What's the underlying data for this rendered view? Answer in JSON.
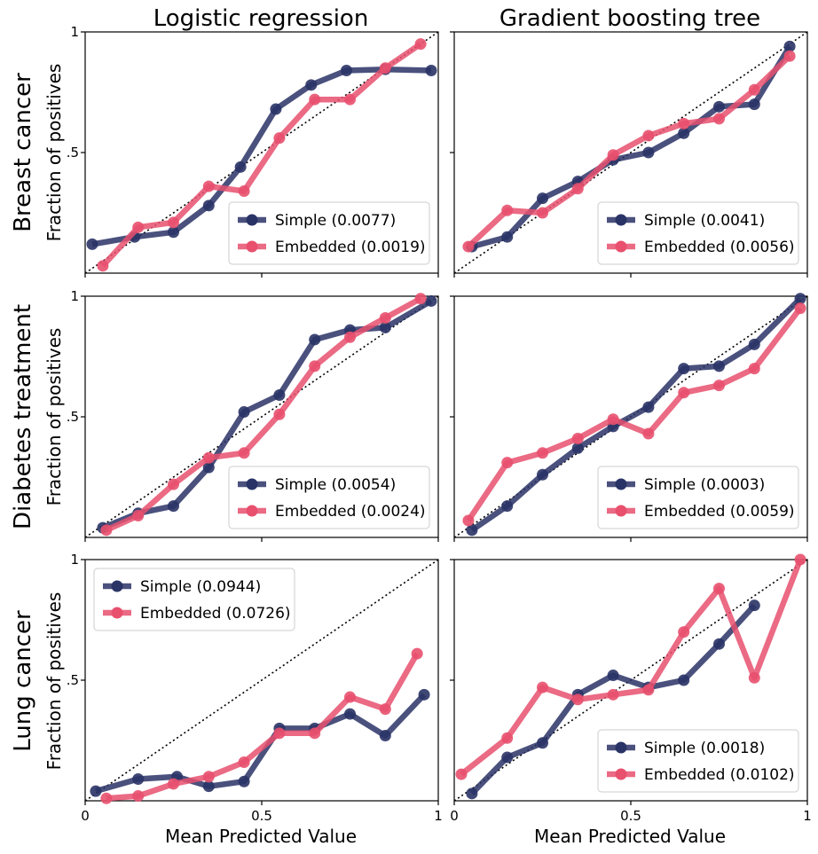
{
  "figure": {
    "column_titles": [
      "Logistic regression",
      "Gradient boosting tree"
    ],
    "row_titles": [
      "Breast cancer",
      "Diabetes treatment",
      "Lung cancer"
    ],
    "ylabel": "Fraction of positives",
    "xlabel": "Mean Predicted Value"
  },
  "colors": {
    "simple": "#2a3366",
    "embedded": "#e8506e",
    "diagonal": "#000000"
  },
  "chart_data": [
    {
      "type": "line",
      "panel": "breast-cancer-logistic-regression",
      "xlim": [
        0,
        1
      ],
      "ylim": [
        0,
        1
      ],
      "grid": false,
      "legend_position": "bottom-right",
      "diagonal": true,
      "series": [
        {
          "name": "Simple (0.0077)",
          "x": [
            0.02,
            0.14,
            0.25,
            0.35,
            0.44,
            0.54,
            0.64,
            0.74,
            0.85,
            0.98
          ],
          "y": [
            0.12,
            0.15,
            0.17,
            0.28,
            0.44,
            0.68,
            0.78,
            0.84,
            0.845,
            0.84
          ]
        },
        {
          "name": "Embedded (0.0019)",
          "x": [
            0.05,
            0.15,
            0.25,
            0.35,
            0.45,
            0.55,
            0.65,
            0.75,
            0.85,
            0.95
          ],
          "y": [
            0.03,
            0.19,
            0.21,
            0.36,
            0.34,
            0.56,
            0.72,
            0.72,
            0.85,
            0.95
          ]
        }
      ]
    },
    {
      "type": "line",
      "panel": "breast-cancer-gradient-boosting-tree",
      "xlim": [
        0,
        1
      ],
      "ylim": [
        0,
        1
      ],
      "grid": false,
      "legend_position": "bottom-right",
      "diagonal": true,
      "series": [
        {
          "name": "Simple (0.0041)",
          "x": [
            0.05,
            0.15,
            0.25,
            0.35,
            0.45,
            0.55,
            0.65,
            0.75,
            0.85,
            0.95
          ],
          "y": [
            0.11,
            0.15,
            0.31,
            0.38,
            0.47,
            0.5,
            0.58,
            0.69,
            0.7,
            0.94
          ]
        },
        {
          "name": "Embedded (0.0056)",
          "x": [
            0.04,
            0.15,
            0.25,
            0.35,
            0.45,
            0.55,
            0.65,
            0.75,
            0.85,
            0.95
          ],
          "y": [
            0.11,
            0.26,
            0.25,
            0.35,
            0.49,
            0.57,
            0.62,
            0.64,
            0.76,
            0.9
          ]
        }
      ]
    },
    {
      "type": "line",
      "panel": "diabetes-treatment-logistic-regression",
      "xlim": [
        0,
        1
      ],
      "ylim": [
        0,
        1
      ],
      "grid": false,
      "legend_position": "bottom-right",
      "diagonal": true,
      "series": [
        {
          "name": "Simple (0.0054)",
          "x": [
            0.05,
            0.15,
            0.25,
            0.35,
            0.45,
            0.55,
            0.65,
            0.75,
            0.85,
            0.98
          ],
          "y": [
            0.04,
            0.1,
            0.13,
            0.29,
            0.52,
            0.59,
            0.82,
            0.86,
            0.87,
            0.98
          ]
        },
        {
          "name": "Embedded (0.0024)",
          "x": [
            0.06,
            0.15,
            0.25,
            0.35,
            0.45,
            0.55,
            0.65,
            0.75,
            0.85,
            0.95
          ],
          "y": [
            0.03,
            0.09,
            0.22,
            0.33,
            0.35,
            0.51,
            0.71,
            0.83,
            0.91,
            0.99
          ]
        }
      ]
    },
    {
      "type": "line",
      "panel": "diabetes-treatment-gradient-boosting-tree",
      "xlim": [
        0,
        1
      ],
      "ylim": [
        0,
        1
      ],
      "grid": false,
      "legend_position": "bottom-right",
      "diagonal": true,
      "series": [
        {
          "name": "Simple (0.0003)",
          "x": [
            0.05,
            0.15,
            0.25,
            0.35,
            0.45,
            0.55,
            0.65,
            0.75,
            0.85,
            0.98
          ],
          "y": [
            0.03,
            0.13,
            0.26,
            0.37,
            0.46,
            0.54,
            0.7,
            0.71,
            0.8,
            0.99
          ]
        },
        {
          "name": "Embedded (0.0059)",
          "x": [
            0.04,
            0.15,
            0.25,
            0.35,
            0.45,
            0.55,
            0.65,
            0.75,
            0.85,
            0.98
          ],
          "y": [
            0.07,
            0.31,
            0.35,
            0.41,
            0.49,
            0.43,
            0.6,
            0.63,
            0.7,
            0.95
          ]
        }
      ]
    },
    {
      "type": "line",
      "panel": "lung-cancer-logistic-regression",
      "xlim": [
        0,
        1
      ],
      "ylim": [
        0,
        1
      ],
      "grid": false,
      "legend_position": "top-left",
      "diagonal": true,
      "series": [
        {
          "name": "Simple (0.0944)",
          "x": [
            0.03,
            0.15,
            0.26,
            0.35,
            0.45,
            0.55,
            0.65,
            0.75,
            0.85,
            0.96
          ],
          "y": [
            0.04,
            0.09,
            0.1,
            0.06,
            0.08,
            0.3,
            0.3,
            0.36,
            0.27,
            0.44
          ]
        },
        {
          "name": "Embedded (0.0726)",
          "x": [
            0.06,
            0.15,
            0.25,
            0.35,
            0.45,
            0.55,
            0.65,
            0.75,
            0.85,
            0.94
          ],
          "y": [
            0.01,
            0.02,
            0.07,
            0.1,
            0.16,
            0.28,
            0.28,
            0.43,
            0.38,
            0.61
          ]
        }
      ]
    },
    {
      "type": "line",
      "panel": "lung-cancer-gradient-boosting-tree",
      "xlim": [
        0,
        1
      ],
      "ylim": [
        0,
        1
      ],
      "grid": false,
      "legend_position": "bottom-right",
      "diagonal": true,
      "series": [
        {
          "name": "Simple (0.0018)",
          "x": [
            0.05,
            0.15,
            0.25,
            0.35,
            0.45,
            0.55,
            0.65,
            0.75,
            0.85
          ],
          "y": [
            0.03,
            0.18,
            0.24,
            0.44,
            0.52,
            0.47,
            0.5,
            0.65,
            0.81
          ]
        },
        {
          "name": "Embedded (0.0102)",
          "x": [
            0.02,
            0.15,
            0.25,
            0.35,
            0.45,
            0.55,
            0.65,
            0.75,
            0.85,
            0.98
          ],
          "y": [
            0.11,
            0.26,
            0.47,
            0.42,
            0.44,
            0.46,
            0.7,
            0.88,
            0.51,
            1.0
          ]
        }
      ]
    }
  ],
  "ticks": {
    "x": [
      {
        "value": 0,
        "label": "0"
      },
      {
        "value": 0.5,
        "label": "0.5"
      },
      {
        "value": 1,
        "label": "1"
      }
    ],
    "y": [
      {
        "value": 0.5,
        "label": ".5"
      },
      {
        "value": 1,
        "label": "1"
      }
    ]
  }
}
